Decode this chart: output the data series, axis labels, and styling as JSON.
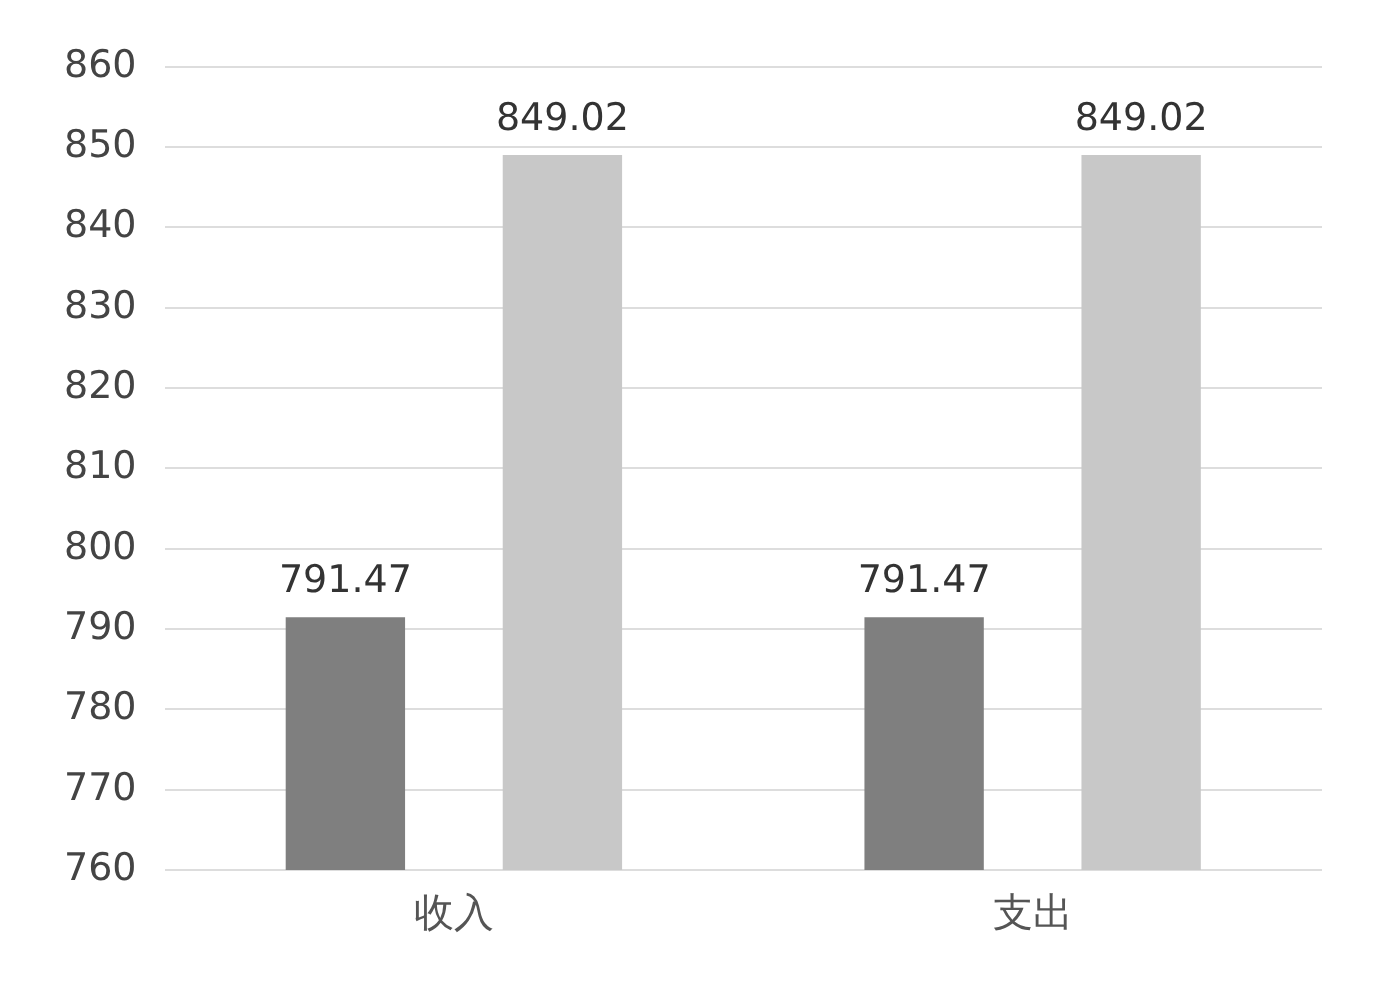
{
  "chart_data": {
    "type": "bar",
    "categories": [
      "收入",
      "支出"
    ],
    "series": [
      {
        "color": "#7f7f7f",
        "values": [
          791.47,
          791.47
        ]
      },
      {
        "color": "#c8c8c8",
        "values": [
          849.02,
          849.02
        ]
      }
    ],
    "ylim": [
      760,
      860
    ],
    "yticks": [
      760,
      770,
      780,
      790,
      800,
      810,
      820,
      830,
      840,
      850,
      860
    ],
    "grid": "y",
    "data_labels": true
  }
}
